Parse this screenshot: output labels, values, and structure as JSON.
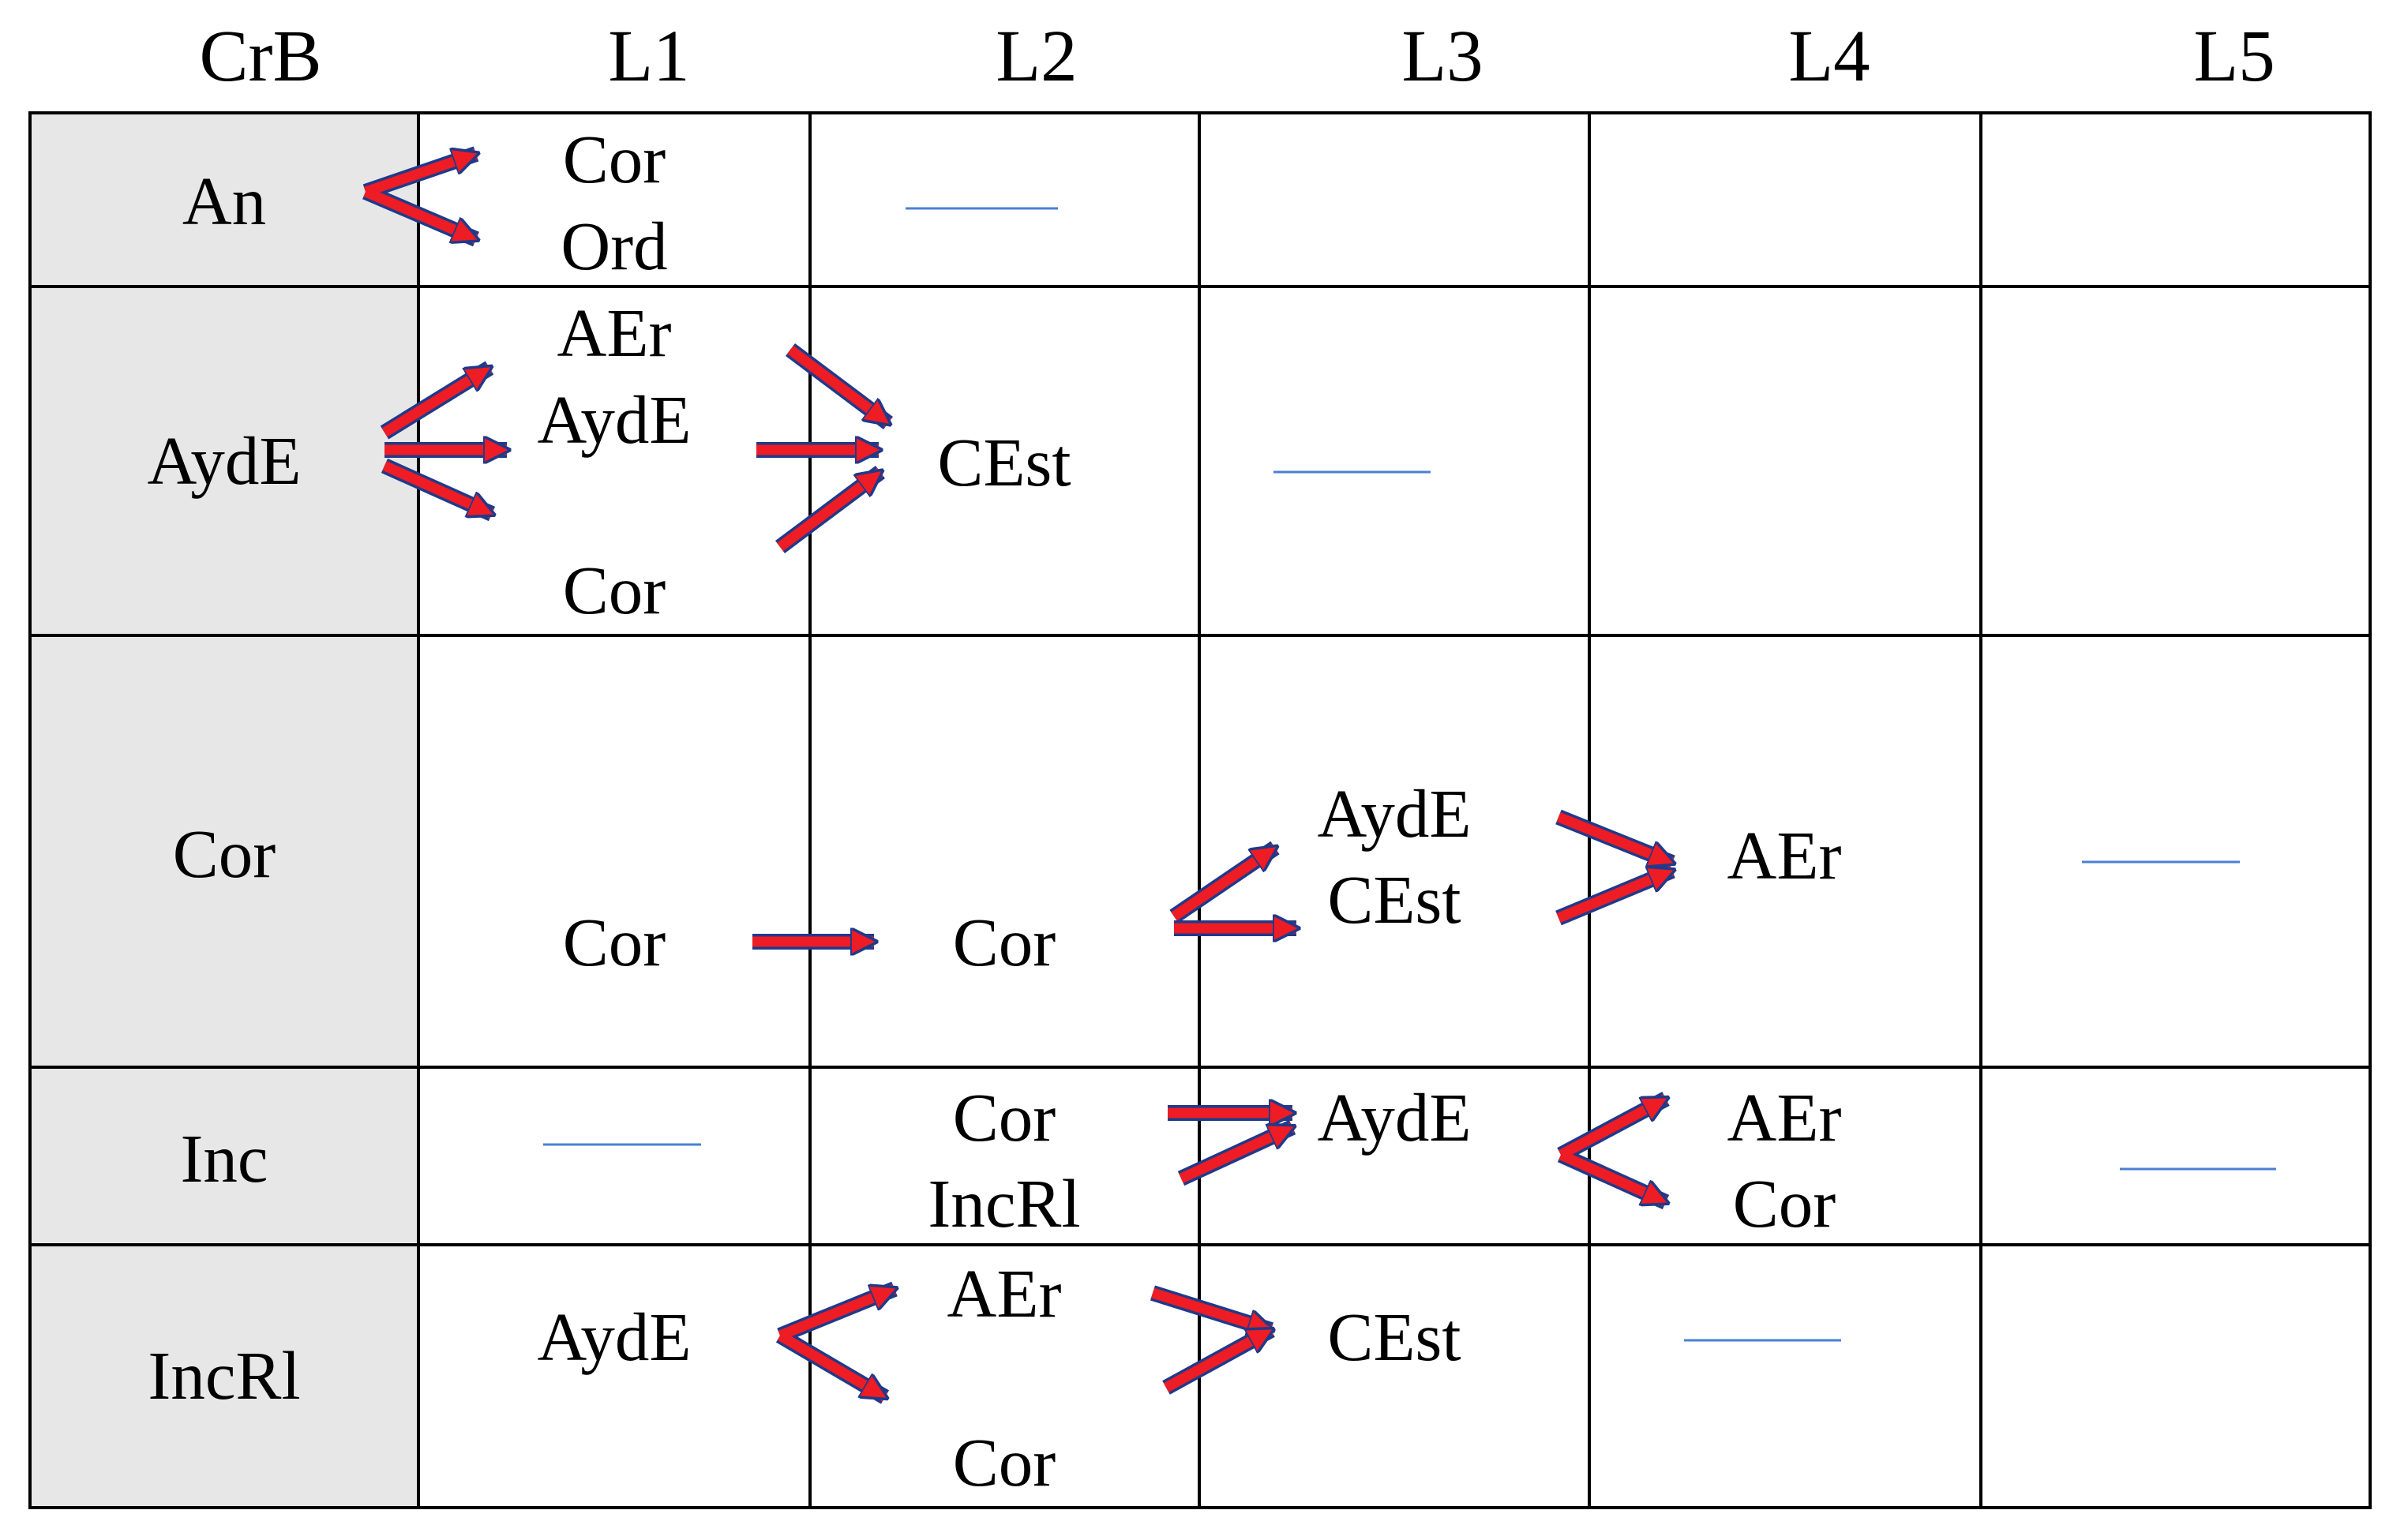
{
  "corner_label": "CrB",
  "columns": [
    "L1",
    "L2",
    "L3",
    "L4",
    "L5"
  ],
  "rows": [
    {
      "id": "an",
      "label": "An"
    },
    {
      "id": "ayde",
      "label": "AydE"
    },
    {
      "id": "cor",
      "label": "Cor"
    },
    {
      "id": "inc",
      "label": "Inc"
    },
    {
      "id": "incrl",
      "label": "IncRl"
    }
  ],
  "cells": {
    "an_l1": [
      "Cor",
      "Ord"
    ],
    "ayde_l1": [
      "AEr",
      "AydE",
      "Cor"
    ],
    "ayde_l2": "CEst",
    "cor_l1": "Cor",
    "cor_l2": "Cor",
    "cor_l3": [
      "AydE",
      "CEst"
    ],
    "cor_l4": "AEr",
    "inc_l2": [
      "Cor",
      "IncRl"
    ],
    "inc_l3": "AydE",
    "inc_l4": [
      "AEr",
      "Cor"
    ],
    "incrl_l1": "AydE",
    "incrl_l2": [
      "AEr",
      "Cor"
    ],
    "incrl_l3": "CEst"
  },
  "colors": {
    "arrow_fill": "#ee1c24",
    "arrow_outline": "#1f3a8a",
    "empty_mark": "#4a7fd4",
    "row_header_bg": "#e7e7e7",
    "grid_line": "#000000"
  }
}
